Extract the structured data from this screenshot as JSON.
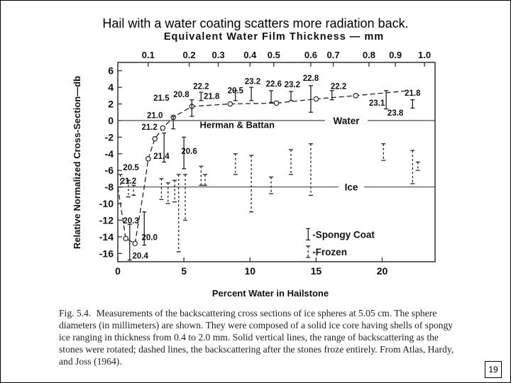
{
  "slide": {
    "title": "Hail with a water coating scatters more radiation back.",
    "page_number": "19"
  },
  "caption": {
    "lead": "Fig. 5.4.",
    "text": "Measurements of the backscattering cross sections of ice spheres at 5.05 cm. The sphere diameters (in millimeters) are shown. They were composed of a solid ice core having shells of spongy ice ranging in thickness from 0.4 to 2.0 mm. Solid vertical lines, the range of backscattering as the stones were rotated; dashed lines, the backscattering after the stones froze entirely. From Atlas, Hardy, and Joss (1964)."
  },
  "chart_data": {
    "type": "scatter",
    "xlabel": "Percent Water in Hailstone",
    "ylabel": "Relative Normalized Cross-Section—db",
    "top_axis_label": "Equivalent Water Film Thickness — mm",
    "xlim": [
      0,
      24
    ],
    "ylim": [
      -17,
      7
    ],
    "x_ticks": [
      0,
      5,
      10,
      15,
      20
    ],
    "y_ticks": [
      6,
      4,
      2,
      0,
      -2,
      -4,
      -6,
      -8,
      -10,
      -12,
      -14,
      -16
    ],
    "top_ticks": [
      {
        "label": "0.1",
        "x": 2.3
      },
      {
        "label": "0.2",
        "x": 5.4
      },
      {
        "label": "0.3",
        "x": 7.6
      },
      {
        "label": "0.4",
        "x": 10.0
      },
      {
        "label": "0.5",
        "x": 11.8
      },
      {
        "label": "0.6",
        "x": 14.6
      },
      {
        "label": "0.7",
        "x": 16.3
      },
      {
        "label": "0.8",
        "x": 19.0
      },
      {
        "label": "0.9",
        "x": 21.0
      },
      {
        "label": "1.0",
        "x": 23.2
      }
    ],
    "reference_lines": [
      {
        "name": "Water",
        "y": 0
      },
      {
        "name": "Ice",
        "y": -8
      }
    ],
    "curve_label": "Herman & Battan",
    "curve": [
      {
        "x": 0,
        "y": -8
      },
      {
        "x": 0.6,
        "y": -14.2
      },
      {
        "x": 1.3,
        "y": -14.8
      },
      {
        "x": 2.0,
        "y": -8.0
      },
      {
        "x": 2.3,
        "y": -4.6
      },
      {
        "x": 2.8,
        "y": -2.2
      },
      {
        "x": 3.4,
        "y": -0.9
      },
      {
        "x": 4.2,
        "y": 0.4
      },
      {
        "x": 5.6,
        "y": 1.7
      },
      {
        "x": 8.5,
        "y": 2.0
      },
      {
        "x": 12.0,
        "y": 2.1
      },
      {
        "x": 15.0,
        "y": 2.6
      },
      {
        "x": 18.0,
        "y": 3.0
      },
      {
        "x": 22.0,
        "y": 3.6
      }
    ],
    "legend": [
      {
        "label": "Spongy Coat",
        "style": "solid"
      },
      {
        "label": "Frozen",
        "style": "dashed"
      }
    ],
    "spongy_coat_ranges": [
      {
        "x": 0.9,
        "low": -16.8,
        "high": -12.5
      },
      {
        "x": 2.0,
        "low": -15.0,
        "high": -11.0
      },
      {
        "x": 3.5,
        "low": -5.0,
        "high": -1.5
      },
      {
        "x": 4.2,
        "low": -1.0,
        "high": 0.5
      },
      {
        "x": 5.0,
        "low": -5.8,
        "high": -2.0
      },
      {
        "x": 5.6,
        "low": 0.5,
        "high": 2.5
      },
      {
        "x": 6.3,
        "low": 2.4,
        "high": 3.4
      },
      {
        "x": 8.9,
        "low": 2.4,
        "high": 3.6
      },
      {
        "x": 10.1,
        "low": 2.4,
        "high": 4.0
      },
      {
        "x": 11.6,
        "low": 2.2,
        "high": 3.6
      },
      {
        "x": 13.1,
        "low": 2.4,
        "high": 3.5
      },
      {
        "x": 14.6,
        "low": 1.0,
        "high": 4.2
      },
      {
        "x": 16.2,
        "low": 2.5,
        "high": 3.6
      },
      {
        "x": 20.3,
        "low": 1.4,
        "high": 3.6
      },
      {
        "x": 22.3,
        "low": 1.5,
        "high": 2.5
      }
    ],
    "frozen_ranges": [
      {
        "x": 0.2,
        "low": -8.0,
        "high": -6.5
      },
      {
        "x": 0.8,
        "low": -9.2,
        "high": -7.2
      },
      {
        "x": 1.2,
        "low": -9.0,
        "high": -7.8
      },
      {
        "x": 3.3,
        "low": -9.5,
        "high": -7.0
      },
      {
        "x": 3.8,
        "low": -10.0,
        "high": -7.5
      },
      {
        "x": 4.3,
        "low": -9.8,
        "high": -7.2
      },
      {
        "x": 4.6,
        "low": -15.8,
        "high": -6.5
      },
      {
        "x": 5.1,
        "low": -12.0,
        "high": -6.5
      },
      {
        "x": 6.3,
        "low": -7.8,
        "high": -5.5
      },
      {
        "x": 6.6,
        "low": -7.8,
        "high": -6.5
      },
      {
        "x": 8.9,
        "low": -6.5,
        "high": -4.0
      },
      {
        "x": 10.1,
        "low": -11.0,
        "high": -4.2
      },
      {
        "x": 11.6,
        "low": -8.8,
        "high": -6.8
      },
      {
        "x": 13.1,
        "low": -6.5,
        "high": -3.5
      },
      {
        "x": 14.6,
        "low": -9.0,
        "high": -2.8
      },
      {
        "x": 20.1,
        "low": -4.8,
        "high": -2.8
      },
      {
        "x": 22.3,
        "low": -7.6,
        "high": -3.6
      },
      {
        "x": 22.7,
        "low": -6.0,
        "high": -5.0
      }
    ],
    "annotations": [
      {
        "text": "22.2",
        "x": 6.3,
        "y": 3.8
      },
      {
        "text": "21.8",
        "x": 7.1,
        "y": 2.6
      },
      {
        "text": "20.5",
        "x": 8.9,
        "y": 3.3
      },
      {
        "text": "23.2",
        "x": 10.2,
        "y": 4.4
      },
      {
        "text": "22.6",
        "x": 11.8,
        "y": 4.1
      },
      {
        "text": "23.2",
        "x": 13.2,
        "y": 4.0
      },
      {
        "text": "22.8",
        "x": 14.6,
        "y": 4.8
      },
      {
        "text": "22.2",
        "x": 16.7,
        "y": 3.8
      },
      {
        "text": "23.1",
        "x": 19.6,
        "y": 1.8
      },
      {
        "text": "21.8",
        "x": 22.3,
        "y": 3.0
      },
      {
        "text": "23.8",
        "x": 21.0,
        "y": 0.6
      },
      {
        "text": "21.5",
        "x": 3.3,
        "y": 2.4
      },
      {
        "text": "20.8",
        "x": 4.8,
        "y": 2.8
      },
      {
        "text": "21.0",
        "x": 2.8,
        "y": 0.3
      },
      {
        "text": "21.2",
        "x": 2.4,
        "y": -1.1
      },
      {
        "text": "21.4",
        "x": 3.3,
        "y": -4.6
      },
      {
        "text": "20.6",
        "x": 5.4,
        "y": -4.0
      },
      {
        "text": "20.5",
        "x": 1.0,
        "y": -6.0
      },
      {
        "text": "21.2",
        "x": 0.8,
        "y": -7.6
      },
      {
        "text": "20.3",
        "x": 1.0,
        "y": -12.4
      },
      {
        "text": "20.0",
        "x": 2.4,
        "y": -14.4
      },
      {
        "text": "20.4",
        "x": 1.7,
        "y": -16.6
      }
    ]
  }
}
